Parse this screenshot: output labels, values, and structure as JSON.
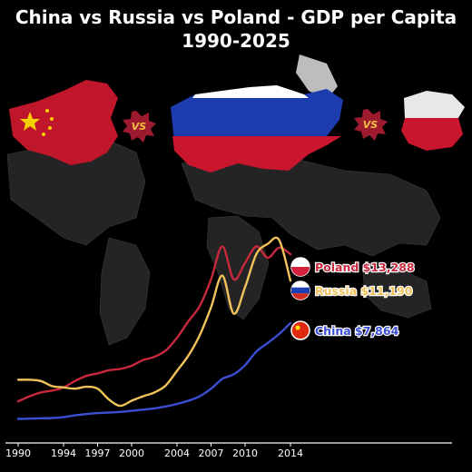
{
  "title": "China vs Russia vs Poland - GDP per Capita 1990-2025",
  "vs_badges": [
    "VS",
    "VS"
  ],
  "colors": {
    "background": "#000000",
    "map": "#2b2b2b",
    "china_line": "#3b4fd4",
    "russia_line": "#f2c35a",
    "poland_line": "#c8283c",
    "axis": "#ffffff"
  },
  "chart_data": {
    "type": "line",
    "title": "China vs Russia vs Poland - GDP per Capita 1990-2025",
    "xlabel": "",
    "ylabel": "",
    "x_ticks": [
      "1990",
      "1994",
      "1997",
      "2000",
      "2004",
      "2007",
      "2010",
      "2014"
    ],
    "xlim": [
      1990,
      2019
    ],
    "ylim": [
      0,
      15000
    ],
    "grid": false,
    "legend": "end-of-line labels",
    "series": [
      {
        "name": "Poland",
        "end_label": "Poland $13,288",
        "color": "#c8283c",
        "icon": "poland-flag-icon",
        "x": [
          1990,
          1991,
          1992,
          1993,
          1994,
          1995,
          1996,
          1997,
          1998,
          1999,
          2000,
          2001,
          2002,
          2003,
          2004,
          2005,
          2006,
          2007,
          2008,
          2009,
          2010,
          2011,
          2012,
          2013,
          2014
        ],
        "y": [
          1700,
          2100,
          2400,
          2550,
          2800,
          3300,
          3700,
          3900,
          4150,
          4250,
          4500,
          4950,
          5200,
          5700,
          6700,
          8000,
          9200,
          11300,
          13900,
          11300,
          12600,
          13900,
          13000,
          13800,
          13288
        ]
      },
      {
        "name": "Russia",
        "end_label": "Russia $11,190",
        "color": "#f2c35a",
        "icon": "russia-flag-icon",
        "x": [
          1990,
          1991,
          1992,
          1993,
          1994,
          1995,
          1996,
          1997,
          1998,
          1999,
          2000,
          2001,
          2002,
          2003,
          2004,
          2005,
          2006,
          2007,
          2008,
          2009,
          2010,
          2011,
          2012,
          2013,
          2014
        ],
        "y": [
          3400,
          3400,
          3300,
          2900,
          2800,
          2700,
          2850,
          2700,
          1850,
          1350,
          1750,
          2100,
          2400,
          2950,
          4100,
          5300,
          6900,
          9100,
          11600,
          8600,
          10700,
          13300,
          14100,
          14400,
          11190
        ]
      },
      {
        "name": "China",
        "end_label": "China $7,864",
        "color": "#3b4fd4",
        "icon": "china-flag-icon",
        "x": [
          1990,
          1991,
          1992,
          1993,
          1994,
          1995,
          1996,
          1997,
          1998,
          1999,
          2000,
          2001,
          2002,
          2003,
          2004,
          2005,
          2006,
          2007,
          2008,
          2009,
          2010,
          2011,
          2012,
          2013,
          2014
        ],
        "y": [
          320,
          340,
          370,
          390,
          460,
          600,
          700,
          780,
          820,
          870,
          960,
          1050,
          1150,
          1300,
          1500,
          1750,
          2100,
          2700,
          3470,
          3830,
          4550,
          5620,
          6300,
          7000,
          7864
        ]
      }
    ]
  }
}
